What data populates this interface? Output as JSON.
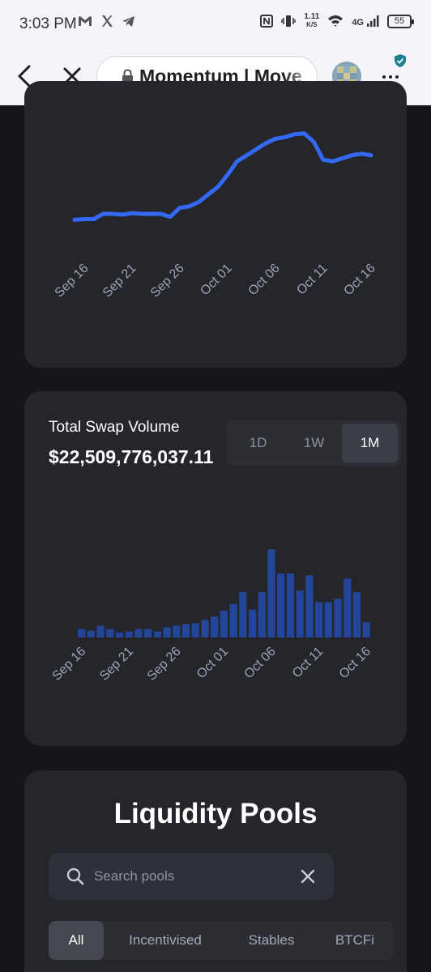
{
  "status_bar": {
    "time": "3:03 PM",
    "net_speed_value": "1.11",
    "net_speed_unit": "K/S",
    "network": "4G",
    "battery": "55"
  },
  "browser": {
    "url_text": "Momentum | Move"
  },
  "tvl_chart": {
    "chart_data": {
      "type": "line",
      "x": [
        "Sep 15",
        "Sep 16",
        "Sep 17",
        "Sep 18",
        "Sep 19",
        "Sep 20",
        "Sep 21",
        "Sep 22",
        "Sep 23",
        "Sep 24",
        "Sep 25",
        "Sep 26",
        "Sep 27",
        "Sep 28",
        "Sep 29",
        "Sep 30",
        "Oct 01",
        "Oct 02",
        "Oct 03",
        "Oct 04",
        "Oct 05",
        "Oct 06",
        "Oct 07",
        "Oct 08",
        "Oct 09",
        "Oct 10",
        "Oct 11",
        "Oct 12",
        "Oct 13",
        "Oct 14",
        "Oct 15",
        "Oct 16"
      ],
      "values": [
        10,
        10.5,
        10.5,
        14,
        14,
        13.5,
        14.5,
        14,
        14,
        14,
        12,
        18,
        19,
        22,
        27,
        32,
        40,
        49,
        53,
        57,
        61,
        64,
        65,
        67,
        67.5,
        62,
        50,
        49,
        51,
        53,
        54,
        53
      ],
      "tick_labels": [
        "Sep 16",
        "Sep 21",
        "Sep 26",
        "Oct 01",
        "Oct 06",
        "Oct 11",
        "Oct 16"
      ],
      "ylim": [
        0,
        80
      ],
      "color": "#3369f4",
      "grid": false
    }
  },
  "volume": {
    "title": "Total Swap Volume",
    "value": "$22,509,776,037.11",
    "ranges": [
      "1D",
      "1W",
      "1M"
    ],
    "active_range": "1M",
    "chart_data": {
      "type": "bar",
      "categories": [
        "Sep 16",
        "Sep 17",
        "Sep 18",
        "Sep 19",
        "Sep 20",
        "Sep 21",
        "Sep 22",
        "Sep 23",
        "Sep 24",
        "Sep 25",
        "Sep 26",
        "Sep 27",
        "Sep 28",
        "Sep 29",
        "Sep 30",
        "Oct 01",
        "Oct 02",
        "Oct 03",
        "Oct 04",
        "Oct 05",
        "Oct 06",
        "Oct 07",
        "Oct 08",
        "Oct 09",
        "Oct 10",
        "Oct 11",
        "Oct 12",
        "Oct 13",
        "Oct 14",
        "Oct 15",
        "Oct 16"
      ],
      "values": [
        10,
        8,
        14,
        10,
        6,
        7,
        10,
        10,
        7,
        12,
        14,
        16,
        17,
        21,
        25,
        32,
        40,
        54,
        33,
        54,
        105,
        76,
        76,
        56,
        74,
        42,
        42,
        46,
        70,
        54,
        18
      ],
      "tick_labels": [
        "Sep 16",
        "Sep 21",
        "Sep 26",
        "Oct 01",
        "Oct 06",
        "Oct 11",
        "Oct 16"
      ],
      "ylim": [
        0,
        110
      ],
      "color": "#24469a",
      "grid": false
    }
  },
  "pools": {
    "title": "Liquidity Pools",
    "search_placeholder": "Search pools",
    "tabs": [
      "All",
      "Incentivised",
      "Stables",
      "BTCFi"
    ],
    "active_tab": "All"
  }
}
